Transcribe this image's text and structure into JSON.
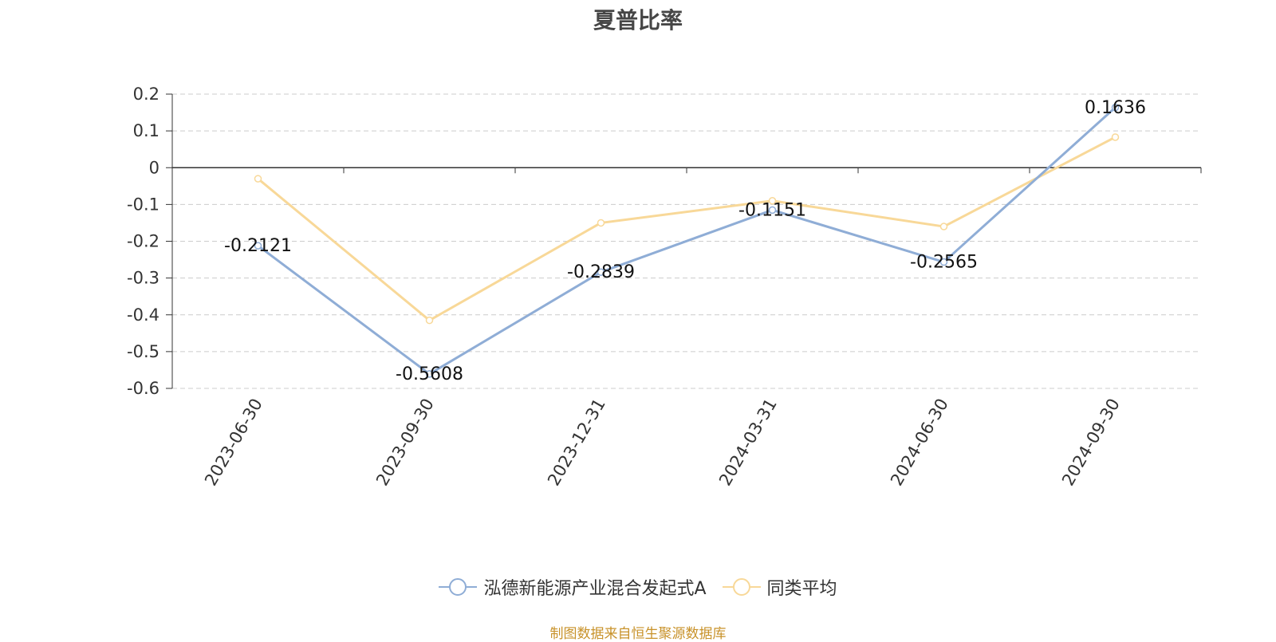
{
  "chart_data": {
    "type": "line",
    "title": "夏普比率",
    "xlabel": "",
    "ylabel": "",
    "categories": [
      "2023-06-30",
      "2023-09-30",
      "2023-12-31",
      "2024-03-31",
      "2024-06-30",
      "2024-09-30"
    ],
    "ylim": [
      -0.6,
      0.2
    ],
    "yticks": [
      0.2,
      0.1,
      0,
      -0.1,
      -0.2,
      -0.3,
      -0.4,
      -0.5,
      -0.6
    ],
    "grid": true,
    "legend_position": "bottom",
    "series": [
      {
        "name": "泓德新能源产业混合发起式A",
        "values": [
          -0.2121,
          -0.5608,
          -0.2839,
          -0.1151,
          -0.2565,
          0.1636
        ],
        "labels": [
          "-0.2121",
          "-0.5608",
          "-0.2839",
          "-0.1151",
          "-0.2565",
          "0.1636"
        ],
        "color": "#8fadd6"
      },
      {
        "name": "同类平均",
        "values": [
          -0.03,
          -0.415,
          -0.15,
          -0.09,
          -0.16,
          0.083
        ],
        "color": "#f8d898"
      }
    ]
  },
  "footer": {
    "source": "制图数据来自恒生聚源数据库"
  }
}
